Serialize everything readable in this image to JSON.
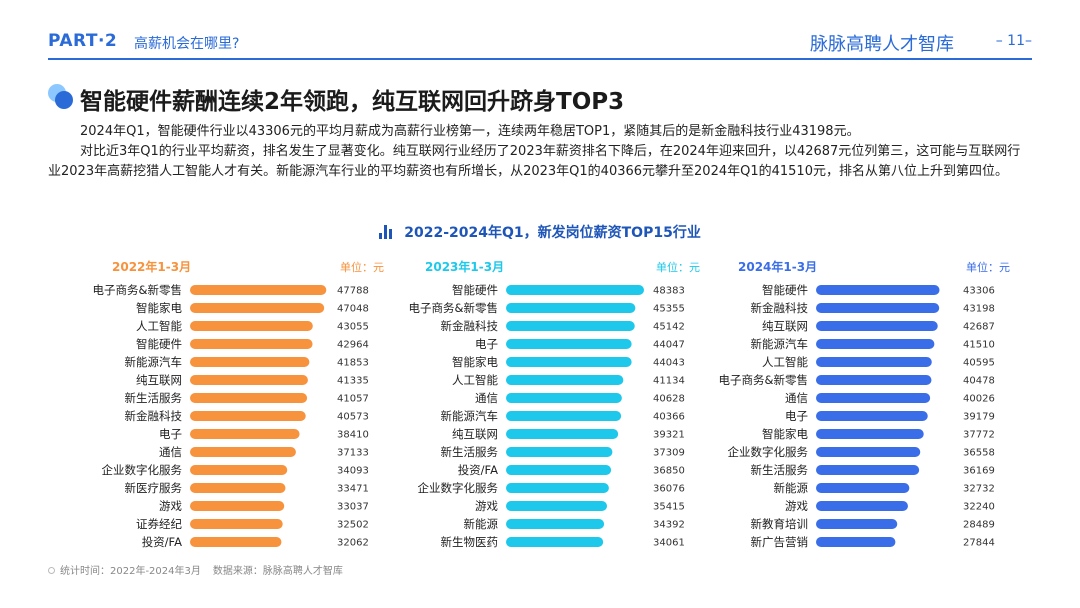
{
  "header": {
    "part": "PART·2",
    "subtitle": "高薪机会在哪里?",
    "brand": "脉脉高聘人才智库",
    "page_number": "– 11–"
  },
  "headline": "智能硬件薪酬连续2年领跑，纯互联网回升跻身TOP3",
  "paragraphs": [
    "2024年Q1，智能硬件行业以43306元的平均月薪成为高薪行业榜第一，连续两年稳居TOP1，紧随其后的是新金融科技行业43198元。",
    "对比近3年Q1的行业平均薪资，排名发生了显著变化。纯互联网行业经历了2023年薪资排名下降后，在2024年迎来回升，以42687元位列第三，这可能与互联网行业2023年高薪挖猎人工智能人才有关。新能源汽车行业的平均薪资也有所增长，从2023年Q1的40366元攀升至2024年Q1的41510元，排名从第八位上升到第四位。"
  ],
  "chart_title": "2022-2024年Q1，新发岗位薪资TOP15行业",
  "footer": {
    "stat_time": "统计时间：2022年-2024年3月",
    "source": "数据来源：脉脉高聘人才智库"
  },
  "colors": {
    "brand": "#2a6bd8",
    "panel_2022": "#f7923d",
    "panel_2023": "#1ec8ea",
    "panel_2024": "#3a6ee8"
  },
  "chart_data": [
    {
      "type": "bar",
      "orientation": "horizontal",
      "title": "2022年1-3月",
      "unit_label": "单位：元",
      "color": "#f7923d",
      "categories": [
        "电子商务&新零售",
        "智能家电",
        "人工智能",
        "智能硬件",
        "新能源汽车",
        "纯互联网",
        "新生活服务",
        "新金融科技",
        "电子",
        "通信",
        "企业数字化服务",
        "新医疗服务",
        "游戏",
        "证券经纪",
        "投资/FA"
      ],
      "values": [
        47788,
        47048,
        43055,
        42964,
        41853,
        41335,
        41057,
        40573,
        38410,
        37133,
        34093,
        33471,
        33037,
        32502,
        32062
      ]
    },
    {
      "type": "bar",
      "orientation": "horizontal",
      "title": "2023年1-3月",
      "unit_label": "单位：元",
      "color": "#1ec8ea",
      "categories": [
        "智能硬件",
        "电子商务&新零售",
        "新金融科技",
        "电子",
        "智能家电",
        "人工智能",
        "通信",
        "新能源汽车",
        "纯互联网",
        "新生活服务",
        "投资/FA",
        "企业数字化服务",
        "游戏",
        "新能源",
        "新生物医药"
      ],
      "values": [
        48383,
        45355,
        45142,
        44047,
        44043,
        41134,
        40628,
        40366,
        39321,
        37309,
        36850,
        36076,
        35415,
        34392,
        34061
      ]
    },
    {
      "type": "bar",
      "orientation": "horizontal",
      "title": "2024年1-3月",
      "unit_label": "单位：元",
      "color": "#3a6ee8",
      "categories": [
        "智能硬件",
        "新金融科技",
        "纯互联网",
        "新能源汽车",
        "人工智能",
        "电子商务&新零售",
        "通信",
        "电子",
        "智能家电",
        "企业数字化服务",
        "新生活服务",
        "新能源",
        "游戏",
        "新教育培训",
        "新广告营销"
      ],
      "values": [
        43306,
        43198,
        42687,
        41510,
        40595,
        40478,
        40026,
        39179,
        37772,
        36558,
        36169,
        32732,
        32240,
        28489,
        27844
      ]
    }
  ]
}
